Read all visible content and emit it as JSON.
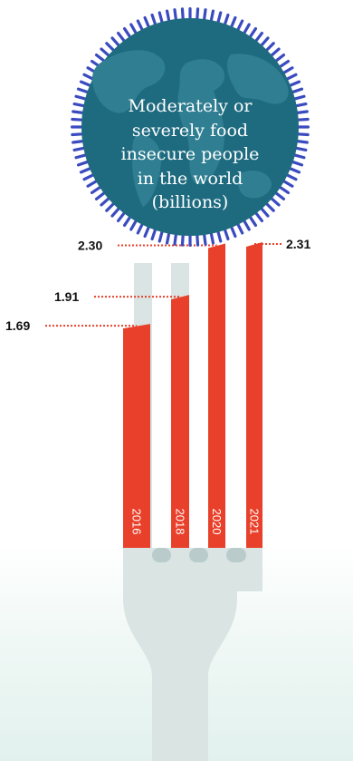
{
  "title_lines": [
    "Moderately or",
    "severely food",
    "insecure people",
    "in the world",
    "(billions)"
  ],
  "colors": {
    "bar": "#e8402a",
    "leader": "#e8402a",
    "globe": "#1e6b80",
    "globe_ring": "#3a4bc0",
    "fork": "#d9e4e3",
    "fork_shadow": "#b9cbcb",
    "label_text": "#111111"
  },
  "chart_data": {
    "type": "bar",
    "title": "Moderately or severely food insecure people in the world (billions)",
    "categories": [
      "2016",
      "2018",
      "2020",
      "2021"
    ],
    "values": [
      1.69,
      1.91,
      2.3,
      2.31
    ],
    "value_labels": [
      "1.69",
      "1.91",
      "2.30",
      "2.31"
    ],
    "ylim": [
      0,
      2.31
    ],
    "xlabel": "",
    "ylabel": "",
    "grid": false,
    "legend": "none"
  }
}
